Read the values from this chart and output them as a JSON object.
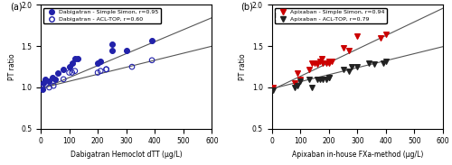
{
  "panel_a": {
    "title": "(a)",
    "xlabel": "Dabigatran Hemoclot dTT (µg/L)",
    "ylabel": "PT ratio",
    "xlim": [
      0,
      600
    ],
    "ylim": [
      0.5,
      2.0
    ],
    "xticks": [
      0,
      100,
      200,
      300,
      400,
      500,
      600
    ],
    "yticks": [
      0.5,
      1.0,
      1.5,
      2.0
    ],
    "series1": {
      "label": "Dabigatran - Simple Simon, r=0.95",
      "color": "#2222aa",
      "marker": "o",
      "filled": true,
      "x": [
        5,
        10,
        15,
        30,
        40,
        50,
        60,
        80,
        100,
        110,
        120,
        130,
        200,
        210,
        250,
        250,
        300,
        390
      ],
      "y": [
        0.98,
        1.05,
        1.1,
        1.08,
        1.12,
        1.1,
        1.18,
        1.22,
        1.25,
        1.3,
        1.35,
        1.35,
        1.3,
        1.32,
        1.52,
        1.45,
        1.45,
        1.57
      ]
    },
    "series2": {
      "label": "Dabigatran - ACL-TOP, r=0.60",
      "color": "#2222aa",
      "marker": "o",
      "filled": false,
      "x": [
        5,
        30,
        45,
        80,
        100,
        110,
        120,
        200,
        210,
        230,
        230,
        320,
        390
      ],
      "y": [
        1.0,
        1.0,
        1.02,
        1.1,
        1.18,
        1.18,
        1.2,
        1.18,
        1.2,
        1.22,
        1.22,
        1.25,
        1.33
      ]
    },
    "line1": {
      "slope": 0.00145,
      "intercept": 0.975
    },
    "line2": {
      "slope": 0.00085,
      "intercept": 0.99
    }
  },
  "panel_b": {
    "title": "(b)",
    "xlabel": "Apixaban in-house FXa-method (µg/L)",
    "ylabel": "PT ratio",
    "xlim": [
      0,
      600
    ],
    "ylim": [
      0.5,
      2.0
    ],
    "xticks": [
      0,
      100,
      200,
      300,
      400,
      500,
      600
    ],
    "yticks": [
      0.5,
      1.0,
      1.5,
      2.0
    ],
    "series1": {
      "label": "Apixaban - Simple Simon, r=0.94",
      "color": "#cc0000",
      "marker": "v",
      "filled": true,
      "x": [
        5,
        80,
        90,
        100,
        130,
        140,
        150,
        160,
        170,
        175,
        180,
        190,
        200,
        200,
        210,
        250,
        270,
        300,
        380,
        400
      ],
      "y": [
        1.0,
        1.05,
        1.18,
        1.1,
        1.22,
        1.3,
        1.3,
        1.28,
        1.32,
        1.35,
        1.3,
        1.3,
        1.3,
        1.32,
        1.32,
        1.48,
        1.45,
        1.62,
        1.6,
        1.65
      ]
    },
    "series2": {
      "label": "Apixaban - ACL-TOP, r=0.79",
      "color": "#222222",
      "marker": "v",
      "filled": true,
      "x": [
        5,
        80,
        90,
        100,
        130,
        140,
        160,
        170,
        180,
        190,
        200,
        200,
        250,
        270,
        280,
        300,
        340,
        360,
        390,
        400
      ],
      "y": [
        0.97,
        1.0,
        1.02,
        1.08,
        1.1,
        1.0,
        1.1,
        1.1,
        1.1,
        1.1,
        1.12,
        1.12,
        1.22,
        1.2,
        1.25,
        1.25,
        1.3,
        1.28,
        1.3,
        1.32
      ]
    },
    "line1": {
      "slope": 0.00165,
      "intercept": 0.97
    },
    "line2": {
      "slope": 0.00085,
      "intercept": 0.985
    }
  },
  "fig_width": 5.0,
  "fig_height": 1.83,
  "dpi": 100
}
